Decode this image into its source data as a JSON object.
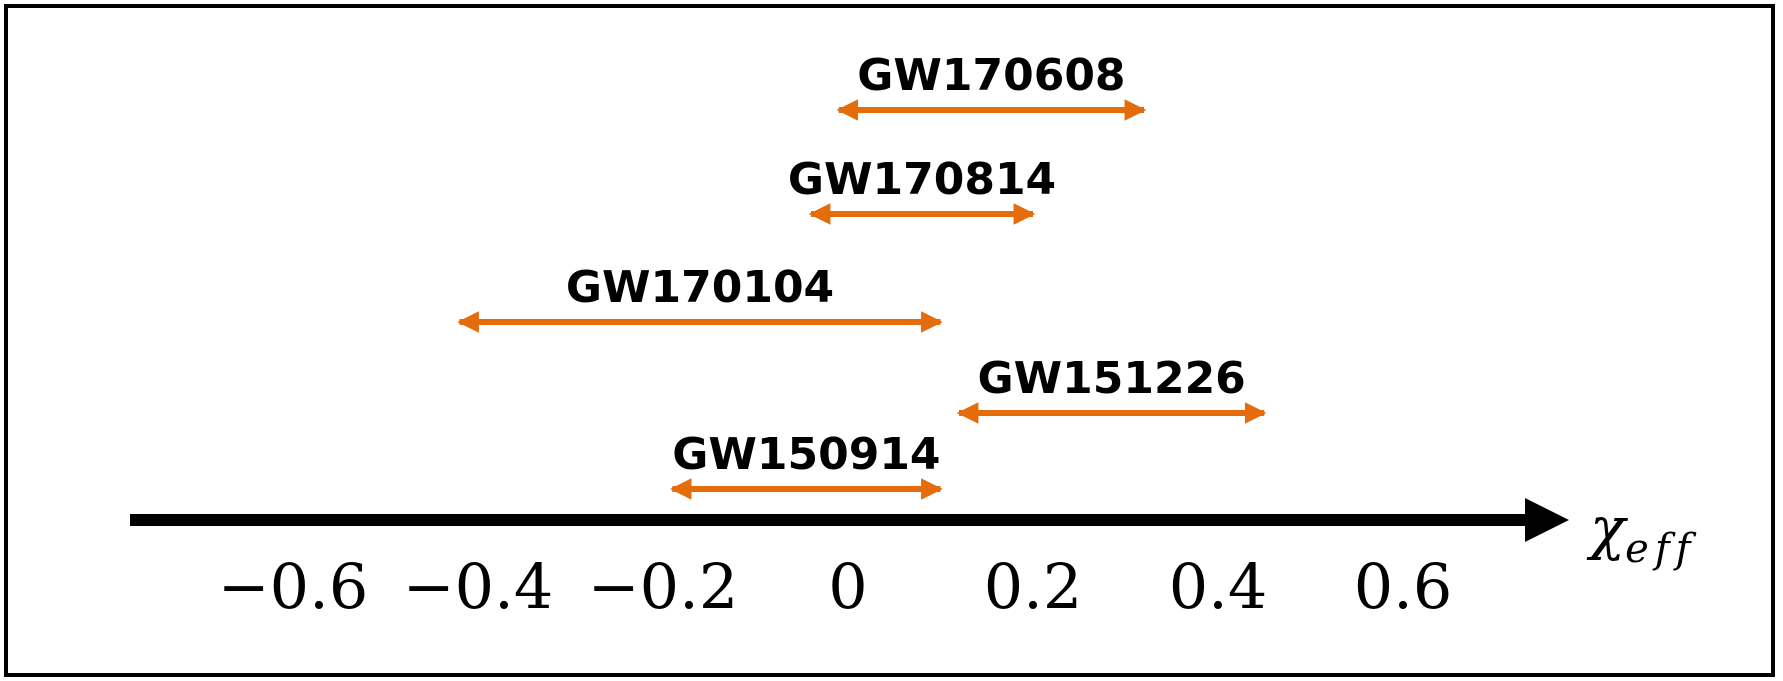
{
  "chart_data": {
    "type": "interval",
    "x_ticks": [
      "−0.6",
      "−0.4",
      "−0.2",
      "0",
      "0.2",
      "0.4",
      "0.6"
    ],
    "x_tick_values": [
      -0.6,
      -0.4,
      -0.2,
      0,
      0.2,
      0.4,
      0.6
    ],
    "xlabel": {
      "main": "χ",
      "subscript": "eff"
    },
    "xlim": [
      -0.67,
      0.69
    ],
    "grid": false,
    "legend": "none",
    "colors": {
      "interval": "#e46c0a",
      "axis": "#000000"
    },
    "series": [
      {
        "name": "GW170608",
        "low": -0.01,
        "high": 0.32
      },
      {
        "name": "GW170814",
        "low": -0.04,
        "high": 0.2
      },
      {
        "name": "GW170104",
        "low": -0.42,
        "high": 0.1
      },
      {
        "name": "GW151226",
        "low": 0.12,
        "high": 0.45
      },
      {
        "name": "GW150914",
        "low": -0.19,
        "high": 0.1
      }
    ]
  }
}
